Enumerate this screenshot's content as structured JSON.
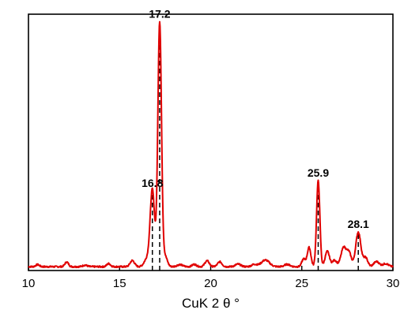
{
  "chart_data": {
    "type": "line",
    "title": "",
    "xlabel": "CuK 2 θ °",
    "ylabel": "",
    "xlim": [
      10,
      30
    ],
    "ylim": [
      0,
      100
    ],
    "xticks": [
      10,
      15,
      20,
      25,
      30
    ],
    "xtick_labels": [
      "10",
      "15",
      "20",
      "25",
      "30"
    ],
    "grid": false,
    "legend": "none",
    "series": [
      {
        "color": "#e00000",
        "baseline": 1.5,
        "peaks": [
          {
            "x": 10.5,
            "h": 0.8,
            "w": 0.1
          },
          {
            "x": 12.1,
            "h": 1.8,
            "w": 0.1
          },
          {
            "x": 13.1,
            "h": 0.6,
            "w": 0.12
          },
          {
            "x": 14.4,
            "h": 1.2,
            "w": 0.1
          },
          {
            "x": 15.7,
            "h": 2.4,
            "w": 0.12
          },
          {
            "x": 16.5,
            "h": 3.0,
            "w": 0.15
          },
          {
            "x": 16.8,
            "h": 30.0,
            "w": 0.12
          },
          {
            "x": 17.2,
            "h": 95.5,
            "w": 0.1
          },
          {
            "x": 17.5,
            "h": 4.0,
            "w": 0.12
          },
          {
            "x": 18.3,
            "h": 0.8,
            "w": 0.15
          },
          {
            "x": 19.1,
            "h": 0.9,
            "w": 0.12
          },
          {
            "x": 19.8,
            "h": 2.3,
            "w": 0.12
          },
          {
            "x": 20.5,
            "h": 1.9,
            "w": 0.12
          },
          {
            "x": 21.5,
            "h": 1.0,
            "w": 0.15
          },
          {
            "x": 22.4,
            "h": 0.9,
            "w": 0.15
          },
          {
            "x": 23.0,
            "h": 2.6,
            "w": 0.22
          },
          {
            "x": 24.2,
            "h": 0.9,
            "w": 0.15
          },
          {
            "x": 25.1,
            "h": 3.0,
            "w": 0.1
          },
          {
            "x": 25.4,
            "h": 7.5,
            "w": 0.1
          },
          {
            "x": 25.9,
            "h": 33.5,
            "w": 0.09
          },
          {
            "x": 26.4,
            "h": 6.0,
            "w": 0.12
          },
          {
            "x": 26.8,
            "h": 2.5,
            "w": 0.12
          },
          {
            "x": 27.3,
            "h": 7.5,
            "w": 0.15
          },
          {
            "x": 27.6,
            "h": 5.0,
            "w": 0.12
          },
          {
            "x": 28.1,
            "h": 13.5,
            "w": 0.14
          },
          {
            "x": 28.5,
            "h": 3.5,
            "w": 0.12
          },
          {
            "x": 29.1,
            "h": 2.0,
            "w": 0.15
          },
          {
            "x": 29.6,
            "h": 1.2,
            "w": 0.15
          }
        ]
      }
    ],
    "annotations": [
      {
        "label": "17.2",
        "x": 17.2,
        "y": 98
      },
      {
        "label": "16.8",
        "x": 16.8,
        "y": 32
      },
      {
        "label": "25.9",
        "x": 25.9,
        "y": 36
      },
      {
        "label": "28.1",
        "x": 28.1,
        "y": 16
      }
    ]
  }
}
